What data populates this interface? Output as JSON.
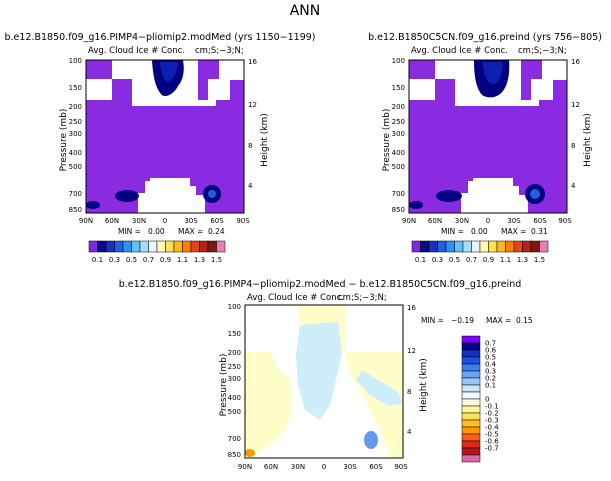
{
  "page_title": "ANN",
  "colors": {
    "purple": "#8a2be2",
    "navy": "#000080",
    "white": "#ffffff",
    "yellow_tint": "#fffdc8",
    "cyan_tint": "#cdeefa",
    "orange": "#ff9900",
    "blue_mid": "#6699ee"
  },
  "colorbar_top": {
    "colors": [
      "#7b2bd8",
      "#0b0b8a",
      "#1b2fbd",
      "#1f5fe0",
      "#2f8ff2",
      "#66bff8",
      "#a6dcff",
      "#e8f6ff",
      "#fffbb0",
      "#ffe24d",
      "#ffba1a",
      "#ff7f00",
      "#e8421a",
      "#b0231a",
      "#7a1a10",
      "#e87fb8"
    ],
    "labels": [
      "0.1",
      "0.3",
      "0.5",
      "0.7",
      "0.9",
      "1.1",
      "1.3",
      "1.5"
    ]
  },
  "colorbar_diff": {
    "colors": [
      "#7f00ff",
      "#00008b",
      "#1030c0",
      "#2050e0",
      "#3d7ff0",
      "#6aa5f6",
      "#97c8fa",
      "#c8e6fc",
      "#eef8ff",
      "#fffde0",
      "#fff6a0",
      "#ffe060",
      "#ffbf20",
      "#ff9900",
      "#ff5a1a",
      "#e0281a",
      "#b01a1a",
      "#d96aa8"
    ],
    "labels": [
      "0.7",
      "0.6",
      "0.5",
      "0.4",
      "0.3",
      "0.2",
      "0.1",
      "0",
      "-0.1",
      "-0.2",
      "-0.3",
      "-0.4",
      "-0.5",
      "-0.6",
      "-0.7"
    ]
  },
  "chart_data": [
    {
      "type": "heatmap",
      "title": "b.e12.B1850.f09_g16.PIMP4−pliomip2.modMed (yrs 1150−1199)",
      "subtitle": "Avg. Cloud Ice # Conc.",
      "units": "cm;S;−3;N;",
      "xlabel": "",
      "ylabel": "Pressure (mb)",
      "ylabel_right": "Height (km)",
      "x_ticks": [
        "90N",
        "60N",
        "30N",
        "0",
        "30S",
        "60S",
        "90S"
      ],
      "y_ticks": [
        "100",
        "150",
        "200",
        "250",
        "300",
        "400",
        "500",
        "700",
        "850"
      ],
      "y_ticks_right": [
        "16",
        "12",
        "8",
        "4"
      ],
      "stats": {
        "min_label": "MIN =",
        "min": "0.00",
        "max_label": "MAX =",
        "max": "0.24"
      }
    },
    {
      "type": "heatmap",
      "title": "b.e12.B1850C5CN.f09_g16.preind (yrs 756−805)",
      "subtitle": "Avg. Cloud Ice # Conc.",
      "units": "cm;S;−3;N;",
      "xlabel": "",
      "ylabel": "Pressure (mb)",
      "ylabel_right": "Height (km)",
      "x_ticks": [
        "90N",
        "60N",
        "30N",
        "0",
        "30S",
        "60S",
        "90S"
      ],
      "y_ticks": [
        "100",
        "150",
        "200",
        "250",
        "300",
        "400",
        "500",
        "700",
        "850"
      ],
      "y_ticks_right": [
        "16",
        "12",
        "8",
        "4"
      ],
      "stats": {
        "min_label": "MIN =",
        "min": "0.00",
        "max_label": "MAX =",
        "max": "0.31"
      }
    },
    {
      "type": "heatmap",
      "title": "b.e12.B1850.f09_g16.PIMP4−pliomip2.modMed − b.e12.B1850C5CN.f09_g16.preind",
      "subtitle": "Avg. Cloud Ice # Conc.",
      "units": "cm;S;−3;N;",
      "xlabel": "",
      "ylabel": "Pressure (mb)",
      "ylabel_right": "Height (km)",
      "x_ticks": [
        "90N",
        "60N",
        "30N",
        "0",
        "30S",
        "60S",
        "90S"
      ],
      "y_ticks": [
        "100",
        "150",
        "200",
        "250",
        "300",
        "400",
        "500",
        "700",
        "850"
      ],
      "y_ticks_right": [
        "16",
        "12",
        "8",
        "4"
      ],
      "stats": {
        "min_label": "MIN =",
        "min": "−0.19",
        "max_label": "MAX =",
        "max": "0.15"
      }
    }
  ]
}
